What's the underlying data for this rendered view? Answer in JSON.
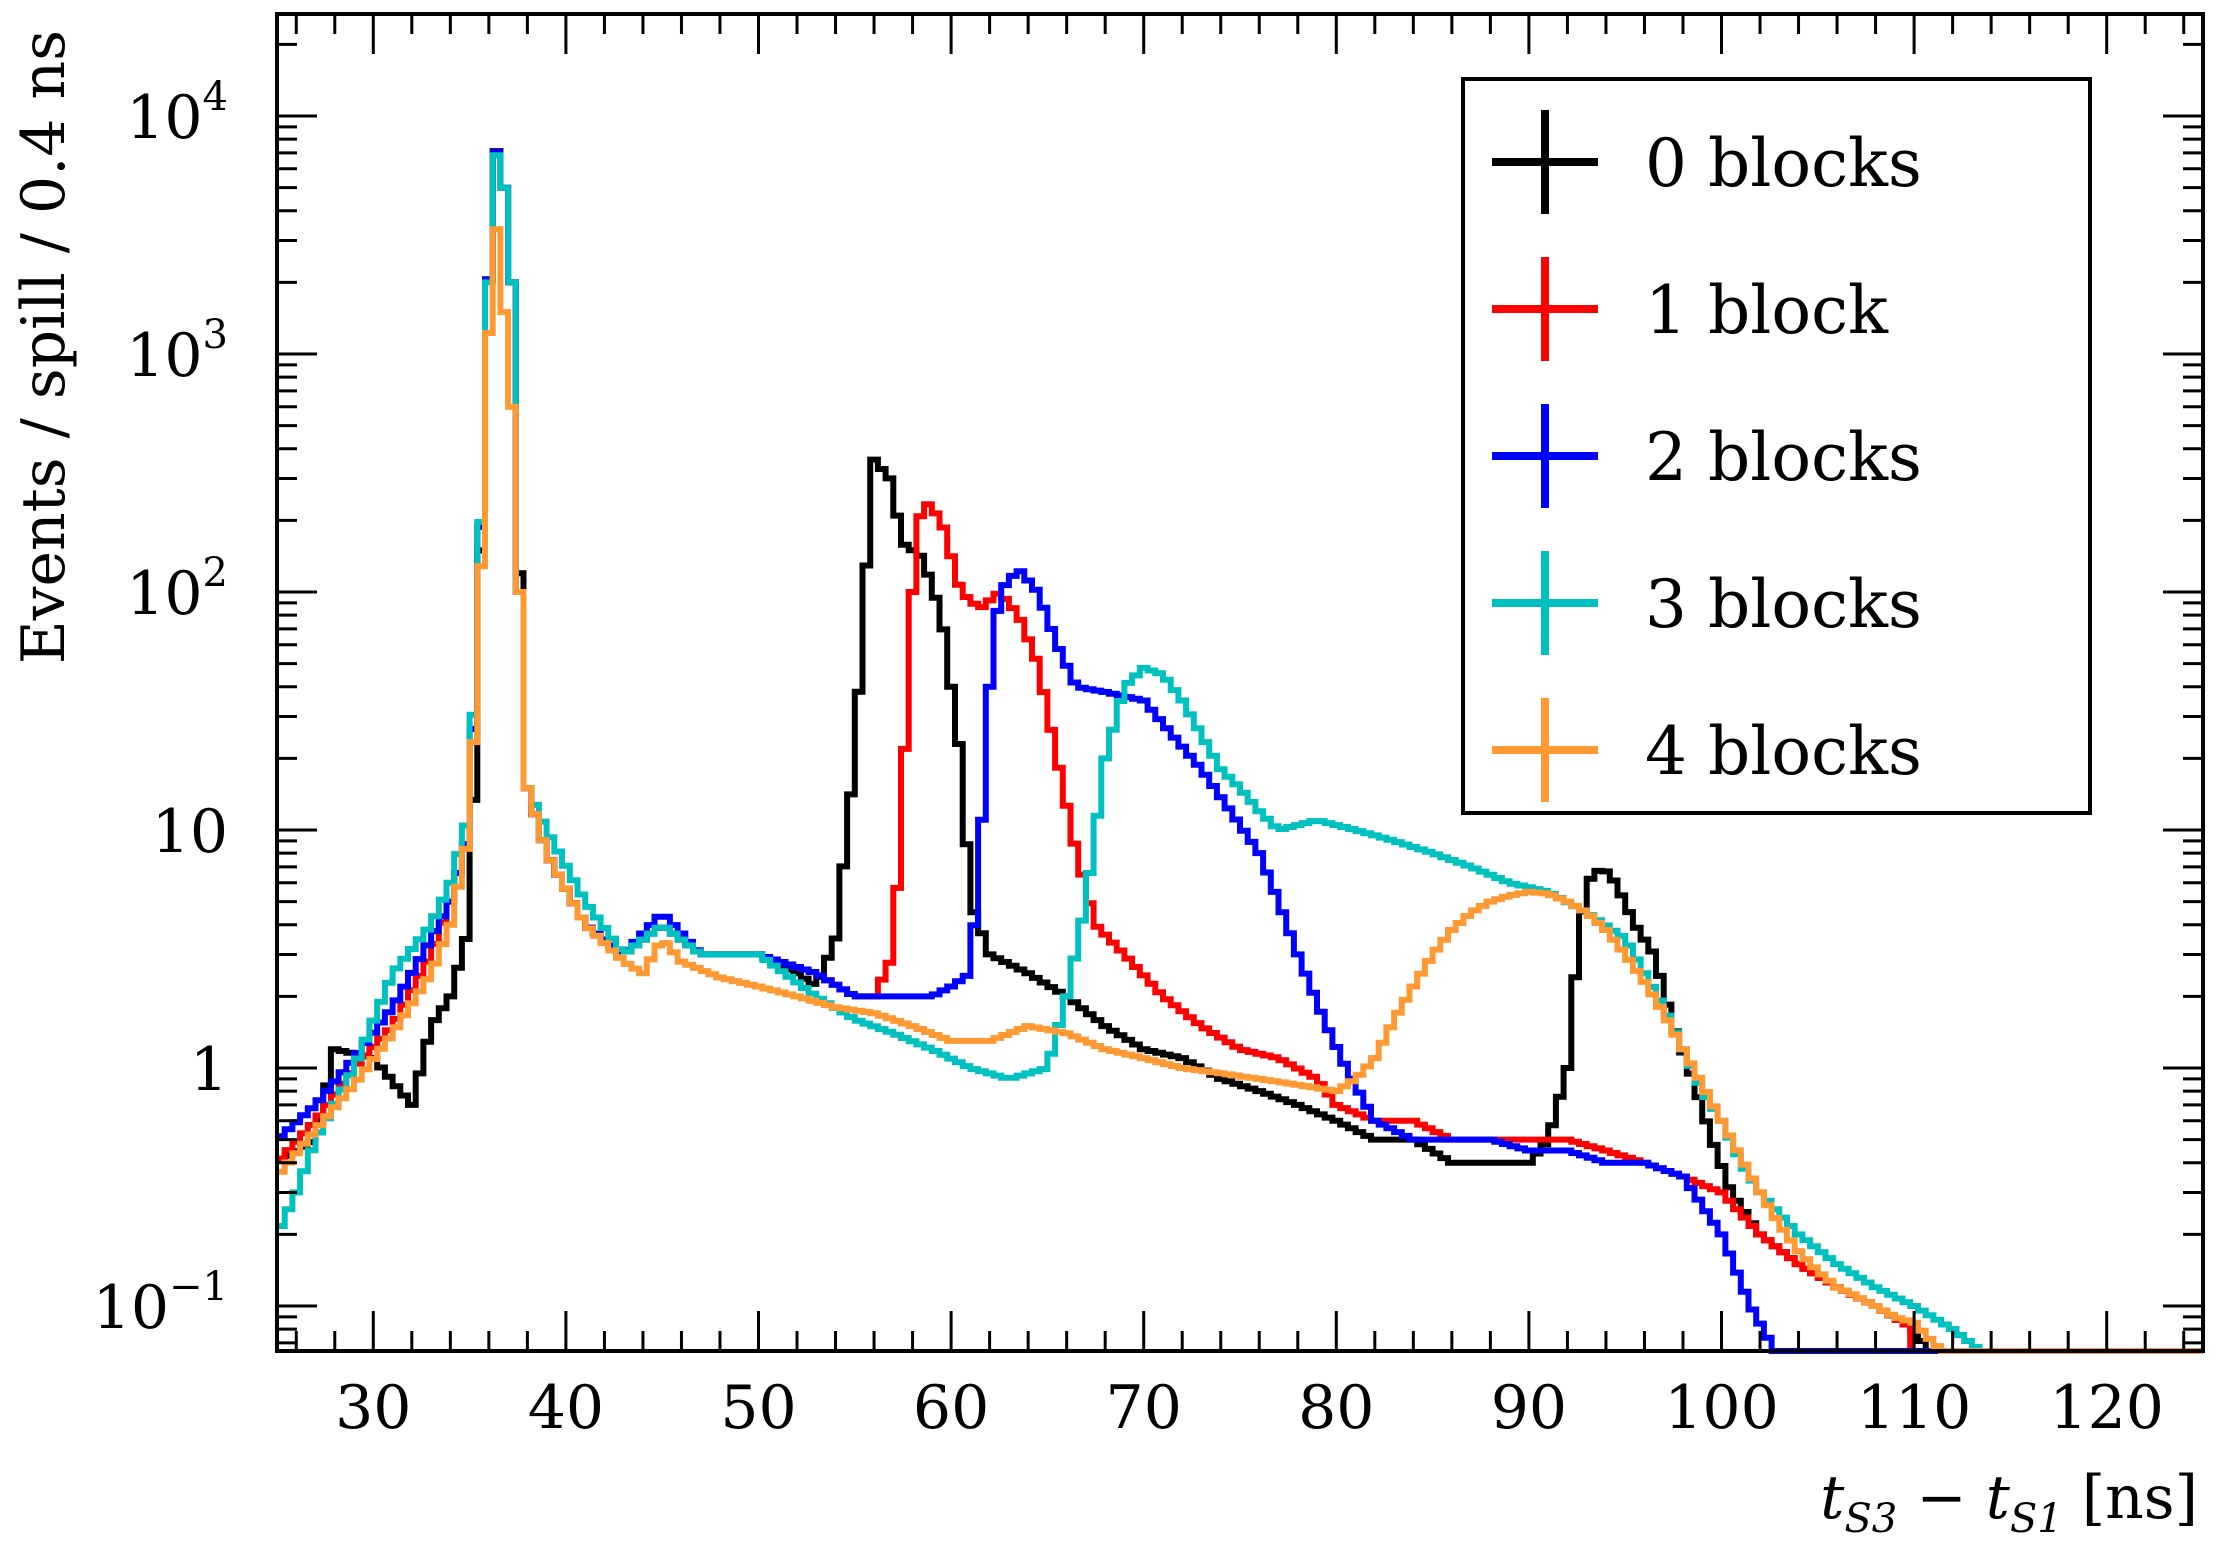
{
  "chart_data": {
    "type": "line",
    "style": "step histogram",
    "xlabel": "t_S3 − t_S1 [ns]",
    "xlabel_parts": {
      "t1": "t",
      "sub1": "S3",
      "minus": " − ",
      "t2": "t",
      "sub2": "S1",
      "unit": " [ns]"
    },
    "ylabel": "Events / spill / 0.4 ns",
    "xlim": [
      25,
      125
    ],
    "ylim": [
      0.05,
      20000
    ],
    "yscale": "log",
    "x_ticks": [
      30,
      40,
      50,
      60,
      70,
      80,
      90,
      100,
      110,
      120
    ],
    "x_tick_labels": [
      "30",
      "40",
      "50",
      "60",
      "70",
      "80",
      "90",
      "100",
      "110",
      "120"
    ],
    "y_ticks": [
      0.1,
      1,
      10,
      100,
      1000,
      10000
    ],
    "y_tick_labels": [
      {
        "base": "10",
        "exp": "−1"
      },
      {
        "base": "1",
        "exp": ""
      },
      {
        "base": "10",
        "exp": ""
      },
      {
        "base": "10",
        "exp": "2"
      },
      {
        "base": "10",
        "exp": "3"
      },
      {
        "base": "10",
        "exp": "4"
      }
    ],
    "legend_position": "top-right",
    "series": [
      {
        "name": "0 blocks",
        "color": "#000000",
        "points": [
          [
            25,
            0.4
          ],
          [
            27,
            0.5
          ],
          [
            28,
            1.2
          ],
          [
            30,
            1.1
          ],
          [
            32,
            0.7
          ],
          [
            33,
            1.5
          ],
          [
            34,
            2.0
          ],
          [
            35,
            4
          ],
          [
            35.8,
            500
          ],
          [
            36.2,
            8500
          ],
          [
            36.8,
            5000
          ],
          [
            37.2,
            2000
          ],
          [
            37.6,
            120
          ],
          [
            38,
            15
          ],
          [
            39,
            8
          ],
          [
            41,
            4
          ],
          [
            43,
            3
          ],
          [
            45,
            4
          ],
          [
            47,
            3
          ],
          [
            50,
            3
          ],
          [
            52,
            2.5
          ],
          [
            53,
            2.2
          ],
          [
            54,
            3.5
          ],
          [
            55,
            20
          ],
          [
            55.5,
            100
          ],
          [
            56,
            360
          ],
          [
            56.8,
            300
          ],
          [
            57.5,
            160
          ],
          [
            58.5,
            140
          ],
          [
            59.5,
            80
          ],
          [
            60.5,
            20
          ],
          [
            61,
            5
          ],
          [
            62,
            3
          ],
          [
            64,
            2.5
          ],
          [
            66,
            2.0
          ],
          [
            68,
            1.5
          ],
          [
            70,
            1.2
          ],
          [
            72,
            1.1
          ],
          [
            74,
            0.9
          ],
          [
            76,
            0.8
          ],
          [
            78,
            0.7
          ],
          [
            80,
            0.6
          ],
          [
            82,
            0.5
          ],
          [
            84,
            0.5
          ],
          [
            86,
            0.4
          ],
          [
            88,
            0.4
          ],
          [
            90,
            0.4
          ],
          [
            91,
            0.5
          ],
          [
            92,
            1.0
          ],
          [
            92.5,
            3
          ],
          [
            93,
            6
          ],
          [
            93.8,
            7
          ],
          [
            94.5,
            6
          ],
          [
            95.5,
            4
          ],
          [
            96.5,
            3
          ],
          [
            97.5,
            1.5
          ],
          [
            98.5,
            0.9
          ],
          [
            99.5,
            0.5
          ],
          [
            100.5,
            0.3
          ],
          [
            102,
            0.2
          ],
          [
            104,
            0.15
          ],
          [
            106,
            0.12
          ],
          [
            108,
            0.1
          ],
          [
            110,
            0.08
          ],
          [
            111,
            0.06
          ]
        ]
      },
      {
        "name": "1 block",
        "color": "#ff0000",
        "points": [
          [
            25,
            0.4
          ],
          [
            27,
            0.6
          ],
          [
            29,
            1.0
          ],
          [
            31,
            1.5
          ],
          [
            33,
            3
          ],
          [
            34,
            5
          ],
          [
            35,
            10
          ],
          [
            35.8,
            500
          ],
          [
            36.2,
            8300
          ],
          [
            36.8,
            5000
          ],
          [
            37.2,
            2000
          ],
          [
            37.6,
            100
          ],
          [
            38,
            15
          ],
          [
            39,
            8
          ],
          [
            41,
            4
          ],
          [
            43,
            3
          ],
          [
            45,
            4
          ],
          [
            47,
            3
          ],
          [
            50,
            3
          ],
          [
            53,
            2.5
          ],
          [
            55,
            2.0
          ],
          [
            56,
            2.0
          ],
          [
            57,
            3
          ],
          [
            57.5,
            15
          ],
          [
            58,
            100
          ],
          [
            58.5,
            250
          ],
          [
            59.5,
            200
          ],
          [
            60.5,
            100
          ],
          [
            61.5,
            85
          ],
          [
            62.5,
            100
          ],
          [
            63.5,
            80
          ],
          [
            64.5,
            50
          ],
          [
            65.5,
            20
          ],
          [
            66.5,
            8
          ],
          [
            67.5,
            4
          ],
          [
            69,
            3
          ],
          [
            71,
            2
          ],
          [
            73,
            1.5
          ],
          [
            75,
            1.2
          ],
          [
            77,
            1.1
          ],
          [
            79,
            0.9
          ],
          [
            80,
            0.7
          ],
          [
            82,
            0.6
          ],
          [
            84,
            0.6
          ],
          [
            86,
            0.5
          ],
          [
            88,
            0.5
          ],
          [
            90,
            0.5
          ],
          [
            92,
            0.5
          ],
          [
            94,
            0.45
          ],
          [
            96,
            0.4
          ],
          [
            98,
            0.35
          ],
          [
            100,
            0.3
          ],
          [
            102,
            0.2
          ],
          [
            104,
            0.15
          ],
          [
            106,
            0.12
          ],
          [
            108,
            0.1
          ],
          [
            110,
            0.08
          ]
        ]
      },
      {
        "name": "2 blocks",
        "color": "#0000ff",
        "points": [
          [
            25,
            0.5
          ],
          [
            27,
            0.7
          ],
          [
            29,
            1.1
          ],
          [
            31,
            1.8
          ],
          [
            33,
            3.5
          ],
          [
            34,
            5
          ],
          [
            35,
            10
          ],
          [
            35.8,
            500
          ],
          [
            36.2,
            8400
          ],
          [
            36.8,
            5000
          ],
          [
            37.2,
            2000
          ],
          [
            37.6,
            100
          ],
          [
            38,
            15
          ],
          [
            39,
            8
          ],
          [
            41,
            4
          ],
          [
            43,
            3
          ],
          [
            45,
            4.5
          ],
          [
            47,
            3
          ],
          [
            50,
            3
          ],
          [
            53,
            2.5
          ],
          [
            55,
            2.0
          ],
          [
            57,
            2.0
          ],
          [
            59,
            2.0
          ],
          [
            60,
            2.2
          ],
          [
            61,
            2.5
          ],
          [
            61.5,
            8
          ],
          [
            62,
            40
          ],
          [
            62.5,
            100
          ],
          [
            63.5,
            125
          ],
          [
            64.5,
            100
          ],
          [
            65.5,
            60
          ],
          [
            66.5,
            40
          ],
          [
            68,
            38
          ],
          [
            70,
            35
          ],
          [
            71.5,
            25
          ],
          [
            73,
            18
          ],
          [
            74.5,
            12
          ],
          [
            76,
            8
          ],
          [
            77,
            5
          ],
          [
            78,
            3
          ],
          [
            79.5,
            1.5
          ],
          [
            80.5,
            1.0
          ],
          [
            82,
            0.6
          ],
          [
            84,
            0.5
          ],
          [
            86,
            0.5
          ],
          [
            88,
            0.5
          ],
          [
            90,
            0.45
          ],
          [
            92,
            0.45
          ],
          [
            94,
            0.4
          ],
          [
            96,
            0.4
          ],
          [
            98,
            0.35
          ],
          [
            100,
            0.2
          ],
          [
            101.5,
            0.1
          ],
          [
            103,
            0.06
          ]
        ]
      },
      {
        "name": "3 blocks",
        "color": "#00c0c0",
        "points": [
          [
            25,
            0.2
          ],
          [
            26,
            0.3
          ],
          [
            27,
            0.5
          ],
          [
            29,
            1.0
          ],
          [
            31,
            2.5
          ],
          [
            33,
            4
          ],
          [
            34,
            6
          ],
          [
            35,
            12
          ],
          [
            35.8,
            500
          ],
          [
            36.2,
            8000
          ],
          [
            36.8,
            5000
          ],
          [
            37.2,
            2000
          ],
          [
            37.6,
            100
          ],
          [
            38,
            15
          ],
          [
            39,
            10
          ],
          [
            41,
            5
          ],
          [
            43,
            3
          ],
          [
            45,
            4
          ],
          [
            47,
            3
          ],
          [
            50,
            3
          ],
          [
            53,
            2.0
          ],
          [
            55,
            1.6
          ],
          [
            57,
            1.4
          ],
          [
            59,
            1.2
          ],
          [
            61,
            1.0
          ],
          [
            63,
            0.9
          ],
          [
            65,
            1.0
          ],
          [
            66,
            2.0
          ],
          [
            67,
            5
          ],
          [
            68,
            20
          ],
          [
            69,
            40
          ],
          [
            70,
            48
          ],
          [
            71,
            45
          ],
          [
            72,
            35
          ],
          [
            73,
            25
          ],
          [
            74,
            18
          ],
          [
            75,
            15
          ],
          [
            76,
            12
          ],
          [
            77,
            10
          ],
          [
            79,
            11
          ],
          [
            81,
            10
          ],
          [
            83,
            9
          ],
          [
            85,
            8
          ],
          [
            87,
            7
          ],
          [
            89,
            6
          ],
          [
            91,
            5.5
          ],
          [
            93,
            4.5
          ],
          [
            95,
            3.5
          ],
          [
            96,
            2.5
          ],
          [
            97,
            1.8
          ],
          [
            98,
            1.2
          ],
          [
            99,
            0.8
          ],
          [
            100,
            0.6
          ],
          [
            101,
            0.4
          ],
          [
            102,
            0.3
          ],
          [
            104,
            0.2
          ],
          [
            106,
            0.15
          ],
          [
            108,
            0.12
          ],
          [
            110,
            0.1
          ],
          [
            112,
            0.08
          ],
          [
            114,
            0.06
          ]
        ]
      },
      {
        "name": "4 blocks",
        "color": "#ff9933",
        "points": [
          [
            25,
            0.35
          ],
          [
            27,
            0.55
          ],
          [
            29,
            0.85
          ],
          [
            31,
            1.4
          ],
          [
            33,
            2.5
          ],
          [
            34,
            4
          ],
          [
            35,
            10
          ],
          [
            35.8,
            300
          ],
          [
            36.2,
            5000
          ],
          [
            36.8,
            1500
          ],
          [
            37.2,
            600
          ],
          [
            37.6,
            100
          ],
          [
            38,
            15
          ],
          [
            39,
            8
          ],
          [
            41,
            4
          ],
          [
            43,
            2.8
          ],
          [
            44,
            2.5
          ],
          [
            45,
            3.5
          ],
          [
            46,
            2.8
          ],
          [
            48,
            2.4
          ],
          [
            50,
            2.2
          ],
          [
            52,
            2.0
          ],
          [
            54,
            1.8
          ],
          [
            56,
            1.7
          ],
          [
            58,
            1.5
          ],
          [
            60,
            1.3
          ],
          [
            62,
            1.3
          ],
          [
            64,
            1.5
          ],
          [
            66,
            1.4
          ],
          [
            68,
            1.2
          ],
          [
            70,
            1.1
          ],
          [
            72,
            1.0
          ],
          [
            74,
            0.95
          ],
          [
            76,
            0.9
          ],
          [
            78,
            0.85
          ],
          [
            80,
            0.8
          ],
          [
            81,
            0.9
          ],
          [
            82,
            1.1
          ],
          [
            83,
            1.6
          ],
          [
            84,
            2.2
          ],
          [
            85,
            3.0
          ],
          [
            86,
            3.8
          ],
          [
            87,
            4.5
          ],
          [
            88,
            5.0
          ],
          [
            89,
            5.3
          ],
          [
            90,
            5.5
          ],
          [
            91,
            5.4
          ],
          [
            92,
            5.0
          ],
          [
            93,
            4.5
          ],
          [
            94,
            3.8
          ],
          [
            95,
            3.0
          ],
          [
            96,
            2.3
          ],
          [
            97,
            1.7
          ],
          [
            98,
            1.2
          ],
          [
            99,
            0.85
          ],
          [
            100,
            0.6
          ],
          [
            101,
            0.42
          ],
          [
            102,
            0.3
          ],
          [
            103,
            0.22
          ],
          [
            104,
            0.17
          ],
          [
            105,
            0.14
          ],
          [
            106,
            0.12
          ],
          [
            107,
            0.11
          ],
          [
            108,
            0.1
          ],
          [
            109,
            0.09
          ],
          [
            110,
            0.085
          ],
          [
            111,
            0.07
          ],
          [
            112,
            0.06
          ]
        ]
      }
    ]
  }
}
